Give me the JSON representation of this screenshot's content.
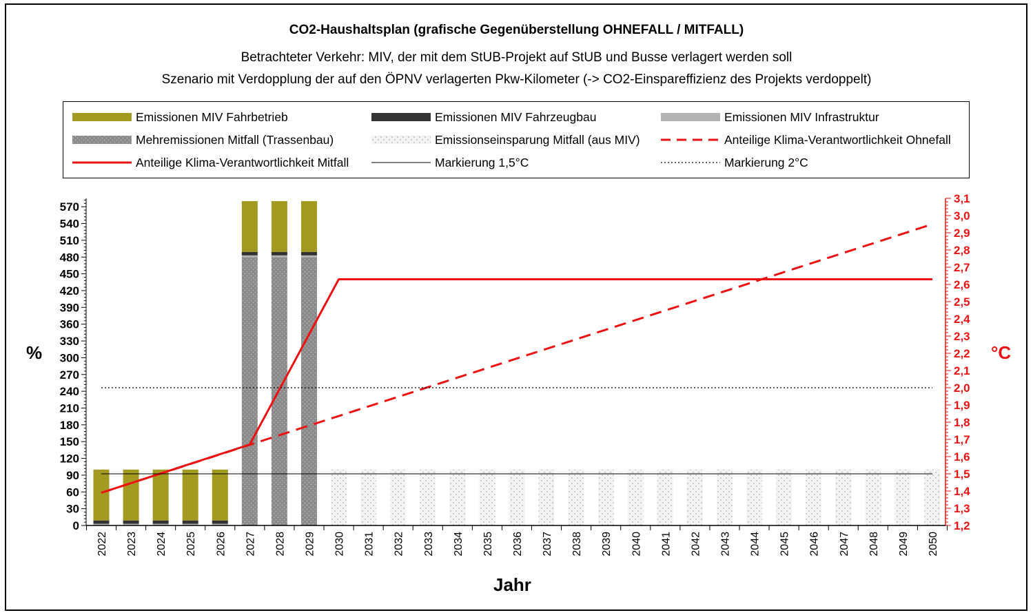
{
  "title": "CO2-Haushaltsplan (grafische Gegenüberstellung OHNEFALL / MITFALL)",
  "subtitle_1": "Betrachteter Verkehr: MIV, der mit dem StUB-Projekt auf StUB und Busse verlagert werden soll",
  "subtitle_2": "Szenario mit Verdopplung der auf den ÖPNV verlagerten Pkw-Kilometer (-> CO2-Einspareffizienz des Projekts verdoppelt)",
  "colors": {
    "fahrbetrieb": "#a39a22",
    "fahrzeugbau": "#333333",
    "infrastruktur": "#b3b3b3",
    "trassenbau": "#8a8a8a",
    "einsparung": "#eeeeee",
    "red": "#ee1111"
  },
  "legend": [
    {
      "label": "Emissionen MIV Fahrbetrieb",
      "swatch": "fahrbetrieb"
    },
    {
      "label": "Emissionen MIV Fahrzeugbau",
      "swatch": "fahrzeugbau"
    },
    {
      "label": "Emissionen MIV Infrastruktur",
      "swatch": "infrastruktur"
    },
    {
      "label": "Mehremissionen Mitfall (Trassenbau)",
      "swatch": "trassenbau"
    },
    {
      "label": "Emissionseinsparung Mitfall (aus MIV)",
      "swatch": "einsparung"
    },
    {
      "label": "Anteilige Klima-Verantwortlichkeit Ohnefall",
      "swatch": "red-dashed"
    },
    {
      "label": "Anteilige Klima-Verantwortlichkeit Mitfall",
      "swatch": "red-solid"
    },
    {
      "label": "Markierung 1,5°C",
      "swatch": "black-line"
    },
    {
      "label": "Markierung 2°C",
      "swatch": "black-dotted"
    }
  ],
  "chart_data": {
    "type": "bar",
    "xlabel": "Jahr",
    "ylabel_left": "%",
    "ylabel_right": "°C",
    "ylim_left": [
      0,
      585
    ],
    "yticks_left": [
      0,
      30,
      60,
      90,
      120,
      150,
      180,
      210,
      240,
      270,
      300,
      330,
      360,
      390,
      420,
      450,
      480,
      510,
      540,
      570
    ],
    "ylim_right": [
      1.2,
      3.1
    ],
    "yticks_right": [
      "1,2",
      "1,3",
      "1,4",
      "1,5",
      "1,6",
      "1,7",
      "1,8",
      "1,9",
      "2,0",
      "2,1",
      "2,2",
      "2,3",
      "2,4",
      "2,5",
      "2,6",
      "2,7",
      "2,8",
      "2,9",
      "3,0",
      "3,1"
    ],
    "categories": [
      "2022",
      "2023",
      "2024",
      "2025",
      "2026",
      "2027",
      "2028",
      "2029",
      "2030",
      "2031",
      "2032",
      "2033",
      "2034",
      "2035",
      "2036",
      "2037",
      "2038",
      "2039",
      "2040",
      "2041",
      "2042",
      "2043",
      "2044",
      "2045",
      "2046",
      "2047",
      "2048",
      "2049",
      "2050"
    ],
    "series": [
      {
        "name": "Mehremissionen Mitfall (Trassenbau)",
        "axis": "left",
        "stack": 0,
        "values": [
          0,
          0,
          0,
          0,
          0,
          480,
          480,
          480,
          0,
          0,
          0,
          0,
          0,
          0,
          0,
          0,
          0,
          0,
          0,
          0,
          0,
          0,
          0,
          0,
          0,
          0,
          0,
          0,
          0
        ]
      },
      {
        "name": "Emissionen MIV Infrastruktur",
        "axis": "left",
        "stack": 1,
        "values": [
          3,
          3,
          3,
          3,
          3,
          3,
          3,
          3,
          0,
          0,
          0,
          0,
          0,
          0,
          0,
          0,
          0,
          0,
          0,
          0,
          0,
          0,
          0,
          0,
          0,
          0,
          0,
          0,
          0
        ]
      },
      {
        "name": "Emissionen MIV Fahrzeugbau",
        "axis": "left",
        "stack": 2,
        "values": [
          6,
          6,
          6,
          6,
          6,
          6,
          6,
          6,
          0,
          0,
          0,
          0,
          0,
          0,
          0,
          0,
          0,
          0,
          0,
          0,
          0,
          0,
          0,
          0,
          0,
          0,
          0,
          0,
          0
        ]
      },
      {
        "name": "Emissionen MIV Fahrbetrieb",
        "axis": "left",
        "stack": 3,
        "values": [
          91,
          91,
          91,
          91,
          91,
          91,
          91,
          91,
          0,
          0,
          0,
          0,
          0,
          0,
          0,
          0,
          0,
          0,
          0,
          0,
          0,
          0,
          0,
          0,
          0,
          0,
          0,
          0,
          0
        ]
      },
      {
        "name": "Emissionseinsparung Mitfall (aus MIV)",
        "axis": "left",
        "stack": 4,
        "values": [
          0,
          0,
          0,
          0,
          0,
          0,
          0,
          0,
          100,
          100,
          100,
          100,
          100,
          100,
          100,
          100,
          100,
          100,
          100,
          100,
          100,
          100,
          100,
          100,
          100,
          100,
          100,
          100,
          100
        ]
      }
    ],
    "lines": [
      {
        "name": "Anteilige Klima-Verantwortlichkeit Ohnefall",
        "axis": "right",
        "style": "dashed",
        "x": [
          "2022",
          "2050"
        ],
        "y": [
          1.39,
          2.95
        ]
      },
      {
        "name": "Anteilige Klima-Verantwortlichkeit Mitfall",
        "axis": "right",
        "style": "solid",
        "x": [
          "2022",
          "2027",
          "2030",
          "2050"
        ],
        "y": [
          1.39,
          1.67,
          2.63,
          2.63
        ]
      },
      {
        "name": "Markierung 1,5°C",
        "axis": "right",
        "style": "solid-thin",
        "x": [
          "2022",
          "2050"
        ],
        "y": [
          1.5,
          1.5
        ]
      },
      {
        "name": "Markierung 2°C",
        "axis": "right",
        "style": "dotted",
        "x": [
          "2022",
          "2050"
        ],
        "y": [
          2.0,
          2.0
        ]
      }
    ]
  }
}
